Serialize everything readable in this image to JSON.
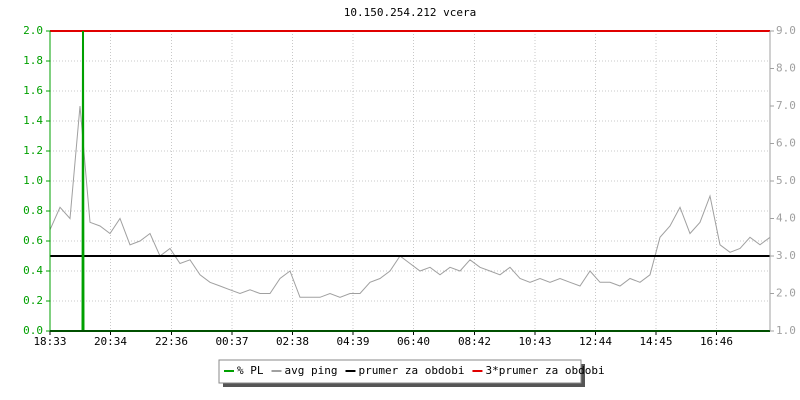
{
  "chart_data": {
    "type": "line",
    "title": "10.150.254.212 vcera",
    "xlim": [
      0,
      1440
    ],
    "xticks": [
      {
        "value": 0,
        "label": "18:33"
      },
      {
        "value": 121,
        "label": "20:34"
      },
      {
        "value": 243,
        "label": "22:36"
      },
      {
        "value": 364,
        "label": "00:37"
      },
      {
        "value": 485,
        "label": "02:38"
      },
      {
        "value": 606,
        "label": "04:39"
      },
      {
        "value": 727,
        "label": "06:40"
      },
      {
        "value": 849,
        "label": "08:42"
      },
      {
        "value": 970,
        "label": "10:43"
      },
      {
        "value": 1091,
        "label": "12:44"
      },
      {
        "value": 1212,
        "label": "14:45"
      },
      {
        "value": 1333,
        "label": "16:46"
      }
    ],
    "ylim": [
      0,
      2
    ],
    "yticks": [
      {
        "value": 0,
        "label": "0.0"
      },
      0.2,
      0.4,
      0.6,
      0.8,
      {
        "value": 1,
        "label": "1.0"
      },
      1.2,
      1.4,
      1.6,
      1.8,
      {
        "value": 2,
        "label": "2.0"
      }
    ],
    "y2lim": [
      1,
      9
    ],
    "y2ticks": [
      {
        "value": 1,
        "label": "1.0"
      },
      {
        "value": 2,
        "label": "2.0"
      },
      {
        "value": 3,
        "label": "3.0"
      },
      {
        "value": 4,
        "label": "4.0"
      },
      {
        "value": 5,
        "label": "5.0"
      },
      {
        "value": 6,
        "label": "6.0"
      },
      {
        "value": 7,
        "label": "7.0"
      },
      {
        "value": 8,
        "label": "8.0"
      },
      {
        "value": 9,
        "label": "9.0"
      }
    ],
    "grid": true,
    "series": [
      {
        "name": "% PL",
        "color": "#00a000",
        "x": [
          0,
          65,
          66,
          67,
          1440
        ],
        "values": [
          0,
          0,
          2,
          0,
          0
        ]
      },
      {
        "name": "avg ping",
        "color": "#a0a0a0",
        "axis": "y2",
        "x": [
          0,
          20,
          40,
          60,
          80,
          100,
          120,
          140,
          160,
          180,
          200,
          220,
          240,
          260,
          280,
          300,
          320,
          340,
          360,
          380,
          400,
          420,
          440,
          460,
          480,
          500,
          520,
          540,
          560,
          580,
          600,
          620,
          640,
          660,
          680,
          700,
          720,
          740,
          760,
          780,
          800,
          820,
          840,
          860,
          880,
          900,
          920,
          940,
          960,
          980,
          1000,
          1020,
          1040,
          1060,
          1080,
          1100,
          1120,
          1140,
          1160,
          1180,
          1200,
          1220,
          1240,
          1260,
          1280,
          1300,
          1320,
          1340,
          1360,
          1380,
          1400,
          1420,
          1440
        ],
        "values": [
          3.7,
          4.3,
          4.0,
          7.0,
          3.9,
          3.8,
          3.6,
          4.0,
          3.3,
          3.4,
          3.6,
          3.0,
          3.2,
          2.8,
          2.9,
          2.5,
          2.3,
          2.2,
          2.1,
          2.0,
          2.1,
          2.0,
          2.0,
          2.4,
          2.6,
          1.9,
          1.9,
          1.9,
          2.0,
          1.9,
          2.0,
          2.0,
          2.3,
          2.4,
          2.6,
          3.0,
          2.8,
          2.6,
          2.7,
          2.5,
          2.7,
          2.6,
          2.9,
          2.7,
          2.6,
          2.5,
          2.7,
          2.4,
          2.3,
          2.4,
          2.3,
          2.4,
          2.3,
          2.2,
          2.6,
          2.3,
          2.3,
          2.2,
          2.4,
          2.3,
          2.5,
          3.5,
          3.8,
          4.3,
          3.6,
          3.9,
          4.6,
          3.3,
          3.1,
          3.2,
          3.5,
          3.3,
          3.5
        ]
      },
      {
        "name": "prumer za obdobi",
        "color": "#000000",
        "axis": "y2",
        "x": [
          0,
          1440
        ],
        "values": [
          3.0,
          3.0
        ]
      },
      {
        "name": "3*prumer za obdobi",
        "color": "#e00000",
        "axis": "y2",
        "x": [
          0,
          1440
        ],
        "values": [
          9.0,
          9.0
        ]
      }
    ]
  }
}
